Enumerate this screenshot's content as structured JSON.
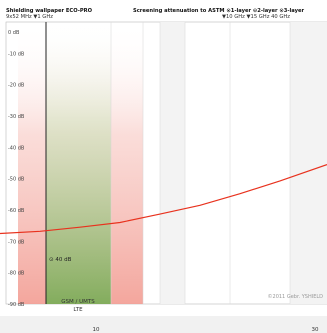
{
  "header": {
    "title_left": "Shielding wallpaper ECO-PRO",
    "subtitle_left": "9x52 MHz  ▼1 GHz",
    "title_right": "Screening attenuation to ASTM ⊙1-layer ⊙2-layer ⊙3-layer",
    "subtitle_right": "▼10 GHz   ▼15 GHz    40 GHz"
  },
  "chart_data": {
    "type": "line",
    "title": "Screening attenuation to ASTM",
    "xlabel": "",
    "ylabel": "",
    "y_ticks": [
      "0 dB",
      "-10 dB",
      "-20 dB",
      "-30 dB",
      "-40 dB",
      "-50 dB",
      "-60 dB",
      "-70 dB",
      "-80 dB",
      "-90 dB"
    ],
    "ylim": [
      0,
      -90
    ],
    "x_tick_labels": [
      "10",
      "30"
    ],
    "grid": true,
    "series": [
      {
        "name": "",
        "color": "#e8321e",
        "points": [
          {
            "x": 0,
            "y": -67.5
          },
          {
            "x": 40,
            "y": -66.8
          },
          {
            "x": 80,
            "y": -65.5
          },
          {
            "x": 120,
            "y": -64.0
          },
          {
            "x": 160,
            "y": -61.3
          },
          {
            "x": 200,
            "y": -58.5
          },
          {
            "x": 240,
            "y": -54.8
          },
          {
            "x": 280,
            "y": -50.7
          },
          {
            "x": 327,
            "y": -45.5
          }
        ]
      }
    ],
    "highlight_band": {
      "label": "GSM / UMTS / LTE",
      "color_top": "#9fd27d",
      "color_side": "#f4a7a0"
    },
    "marker": {
      "label": "⊙ 40 dB",
      "value": -66
    },
    "annotation_bottom_right": "©2011 Gebr. YSHIELD"
  }
}
